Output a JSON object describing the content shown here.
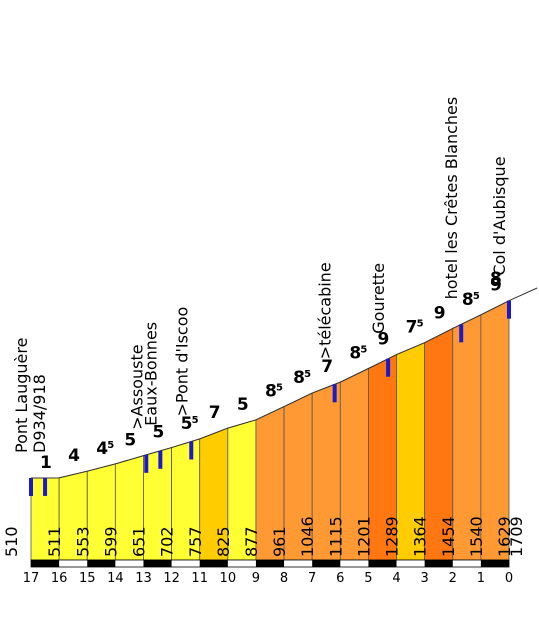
{
  "colors": {
    "yellow": "#ffff33",
    "light_orange": "#ffcc00",
    "orange": "#ff9933",
    "dark_orange": "#ff7711",
    "outline": "#555555",
    "marker": "#1a1acc",
    "axis_bar": "#000000"
  },
  "chart_data": {
    "type": "area",
    "title": "",
    "xlabel": "",
    "ylabel": "",
    "x_ticks": [
      "17",
      "16",
      "15",
      "14",
      "13",
      "12",
      "11",
      "10",
      "9",
      "8",
      "7",
      "6",
      "5",
      "4",
      "3",
      "2",
      "1",
      "0"
    ],
    "start_altitude": "510",
    "end_altitude": "1709",
    "altitudes": [
      511,
      553,
      599,
      651,
      702,
      757,
      825,
      877,
      961,
      1046,
      1115,
      1201,
      1289,
      1364,
      1454,
      1540,
      1629
    ],
    "segments": [
      {
        "km": 17,
        "gradient": "1",
        "fraction": "",
        "color": "yellow"
      },
      {
        "km": 16,
        "gradient": "4",
        "fraction": "",
        "color": "yellow"
      },
      {
        "km": 15,
        "gradient": "4",
        "fraction": "5",
        "color": "yellow"
      },
      {
        "km": 14,
        "gradient": "5",
        "fraction": "",
        "color": "yellow"
      },
      {
        "km": 13,
        "gradient": "5",
        "fraction": "",
        "color": "yellow"
      },
      {
        "km": 12,
        "gradient": "5",
        "fraction": "5",
        "color": "yellow"
      },
      {
        "km": 11,
        "gradient": "7",
        "fraction": "",
        "color": "light_orange"
      },
      {
        "km": 10,
        "gradient": "5",
        "fraction": "",
        "color": "yellow"
      },
      {
        "km": 9,
        "gradient": "8",
        "fraction": "5",
        "color": "orange"
      },
      {
        "km": 8,
        "gradient": "8",
        "fraction": "5",
        "color": "orange"
      },
      {
        "km": 7,
        "gradient": "7",
        "fraction": "",
        "color": "orange"
      },
      {
        "km": 6,
        "gradient": "8",
        "fraction": "5",
        "color": "orange"
      },
      {
        "km": 5,
        "gradient": "9",
        "fraction": "",
        "color": "dark_orange"
      },
      {
        "km": 4,
        "gradient": "7",
        "fraction": "5",
        "color": "light_orange"
      },
      {
        "km": 3,
        "gradient": "9",
        "fraction": "",
        "color": "dark_orange"
      },
      {
        "km": 2,
        "gradient": "8",
        "fraction": "5",
        "color": "orange"
      },
      {
        "km": 1,
        "gradient": "9",
        "fraction": "",
        "color": "orange"
      },
      {
        "km": 0.5,
        "gradient": "8",
        "fraction": "",
        "color": "orange"
      }
    ],
    "places": [
      {
        "km": 17,
        "lines": [
          "Pont Lauguère",
          "D934/918"
        ]
      },
      {
        "km": 16.5,
        "lines": []
      },
      {
        "km": 12.9,
        "lines": [
          ">Assouste"
        ]
      },
      {
        "km": 12.4,
        "lines": [
          "Eaux-Bonnes"
        ]
      },
      {
        "km": 11.3,
        "lines": [
          ">Pont d'Iscoo"
        ]
      },
      {
        "km": 6.2,
        "lines": [
          ">télécabine"
        ]
      },
      {
        "km": 4.3,
        "lines": [
          "Gourette"
        ]
      },
      {
        "km": 1.7,
        "lines": [
          "hotel les Crêtes Blanches"
        ]
      },
      {
        "km": 0,
        "lines": [
          "Col d'Aubisque"
        ]
      }
    ]
  }
}
